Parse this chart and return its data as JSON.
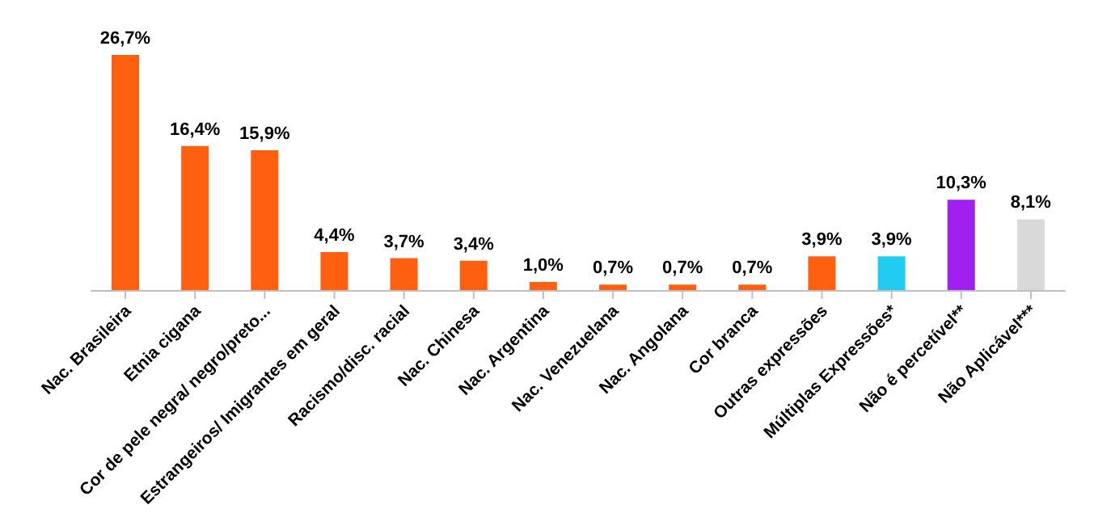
{
  "chart_data": {
    "type": "bar",
    "categories": [
      "Nac. Brasileira",
      "Etnia cigana",
      "Cor de pele negra/ negro/preto...",
      "Estrangeiros/ Imigrantes em geral",
      "Racismo/disc. racial",
      "Nac. Chinesa",
      "Nac. Argentina",
      "Nac. Venezuelana",
      "Nac. Angolana",
      "Cor branca",
      "Outras expressões",
      "Múltiplas Expressões*",
      "Não é percetível**",
      "Não Aplicável***"
    ],
    "values": [
      26.7,
      16.4,
      15.9,
      4.4,
      3.7,
      3.4,
      1.0,
      0.7,
      0.7,
      0.7,
      3.9,
      3.9,
      10.3,
      8.1
    ],
    "value_labels": [
      "26,7%",
      "16,4%",
      "15,9%",
      "4,4%",
      "3,7%",
      "3,4%",
      "1,0%",
      "0,7%",
      "0,7%",
      "0,7%",
      "3,9%",
      "3,9%",
      "10,3%",
      "8,1%"
    ],
    "colors": [
      "#ff6010",
      "#ff6010",
      "#ff6010",
      "#ff6010",
      "#ff6010",
      "#ff6010",
      "#ff6010",
      "#ff6010",
      "#ff6010",
      "#ff6010",
      "#ff6010",
      "#22ccf0",
      "#a020f0",
      "#d9d9d9"
    ],
    "grid": false,
    "legend": false
  }
}
